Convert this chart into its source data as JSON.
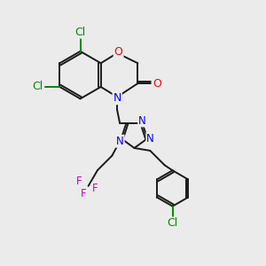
{
  "bg_color": "#ebebeb",
  "bond_color": "#1a1a1a",
  "bond_width": 1.4,
  "atom_colors": {
    "Cl": "#008800",
    "O": "#ff0000",
    "N": "#0000ff",
    "F": "#cc00cc",
    "C": "#1a1a1a"
  }
}
